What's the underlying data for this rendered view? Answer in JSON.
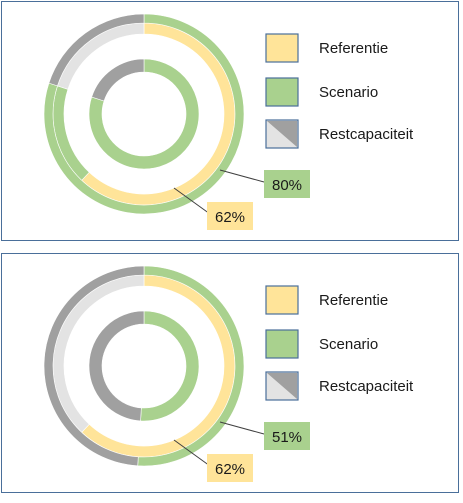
{
  "colors": {
    "referentie": "#ffe499",
    "referentie_stroke": "#e8c25a",
    "scenario": "#a9d18e",
    "scenario_stroke": "#7fb35e",
    "rest_light": "#e3e3e3",
    "rest_dark": "#a0a0a0",
    "panel_border": "#4a6f9a",
    "leader": "#404040"
  },
  "chart_data": [
    {
      "type": "pie",
      "legend": [
        {
          "key": "referentie",
          "label": "Referentie"
        },
        {
          "key": "scenario",
          "label": "Scenario"
        },
        {
          "key": "restcapaciteit",
          "label": "Restcapaciteit"
        }
      ],
      "outer_ring": {
        "slices": [
          {
            "name": "Referentie",
            "value": 62,
            "fill": "#ffe499"
          },
          {
            "name": "Scenario extra",
            "value": 18,
            "fill": "#a9d18e"
          },
          {
            "name": "Restcapaciteit",
            "value": 20,
            "fill": "#e3e3e3"
          }
        ],
        "border_slices": [
          {
            "name": "Scenario",
            "value": 80,
            "fill": "#a9d18e"
          },
          {
            "name": "Restcapaciteit",
            "value": 20,
            "fill": "#a0a0a0"
          }
        ]
      },
      "inner_ring": {
        "slices": [
          {
            "name": "Scenario",
            "value": 80,
            "fill": "#a9d18e"
          },
          {
            "name": "Restcapaciteit",
            "value": 20,
            "fill": "#a0a0a0"
          }
        ]
      },
      "labels": {
        "scenario": {
          "text": "80%",
          "fill": "#a9d18e"
        },
        "referentie": {
          "text": "62%",
          "fill": "#ffe499"
        }
      }
    },
    {
      "type": "pie",
      "legend": [
        {
          "key": "referentie",
          "label": "Referentie"
        },
        {
          "key": "scenario",
          "label": "Scenario"
        },
        {
          "key": "restcapaciteit",
          "label": "Restcapaciteit"
        }
      ],
      "outer_ring": {
        "slices": [
          {
            "name": "Referentie",
            "value": 62,
            "fill": "#ffe499"
          },
          {
            "name": "Restcapaciteit",
            "value": 38,
            "fill": "#e3e3e3"
          }
        ],
        "border_slices": [
          {
            "name": "Scenario",
            "value": 51,
            "fill": "#a9d18e"
          },
          {
            "name": "Restcapaciteit",
            "value": 49,
            "fill": "#a0a0a0"
          }
        ]
      },
      "inner_ring": {
        "slices": [
          {
            "name": "Scenario",
            "value": 51,
            "fill": "#a9d18e"
          },
          {
            "name": "Restcapaciteit",
            "value": 49,
            "fill": "#a0a0a0"
          }
        ]
      },
      "labels": {
        "scenario": {
          "text": "51%",
          "fill": "#a9d18e"
        },
        "referentie": {
          "text": "62%",
          "fill": "#ffe499"
        }
      }
    }
  ]
}
